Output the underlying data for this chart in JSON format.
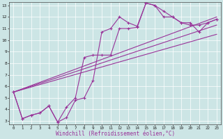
{
  "background_color": "#cce5e5",
  "grid_color": "#b0d8d8",
  "line_color": "#993399",
  "xlabel": "Windchill (Refroidissement éolien,°C)",
  "xlim": [
    0,
    23
  ],
  "ylim": [
    3,
    13
  ],
  "ytick_vals": [
    3,
    4,
    5,
    6,
    7,
    8,
    9,
    10,
    11,
    12,
    13
  ],
  "xtick_vals": [
    0,
    1,
    2,
    3,
    4,
    5,
    6,
    7,
    8,
    9,
    10,
    11,
    12,
    13,
    14,
    15,
    16,
    17,
    18,
    19,
    20,
    21,
    22,
    23
  ],
  "line1_x": [
    0,
    1,
    2,
    3,
    4,
    5,
    6,
    7,
    8,
    9,
    10,
    11,
    12,
    13,
    14,
    15,
    16,
    17,
    18,
    19,
    20,
    21,
    22,
    23
  ],
  "line1_y": [
    5.5,
    3.2,
    3.5,
    3.7,
    4.3,
    2.9,
    3.3,
    4.8,
    5.0,
    6.5,
    10.7,
    11.0,
    12.0,
    11.5,
    11.2,
    13.2,
    13.0,
    12.5,
    12.0,
    11.5,
    11.3,
    11.3,
    11.5,
    11.8
  ],
  "line2_x": [
    0,
    1,
    2,
    3,
    4,
    5,
    6,
    7,
    8,
    9,
    10,
    11,
    12,
    13,
    14,
    15,
    16,
    17,
    18,
    19,
    20,
    21,
    22,
    23
  ],
  "line2_y": [
    5.5,
    3.2,
    3.5,
    3.7,
    4.3,
    2.9,
    4.2,
    5.0,
    8.5,
    8.7,
    8.7,
    8.7,
    11.0,
    11.0,
    11.1,
    13.2,
    13.0,
    12.0,
    12.0,
    11.5,
    11.5,
    10.7,
    11.5,
    11.8
  ],
  "straight_lines": [
    {
      "x": [
        0,
        23
      ],
      "y": [
        5.5,
        12.0
      ]
    },
    {
      "x": [
        0,
        23
      ],
      "y": [
        5.5,
        11.3
      ]
    },
    {
      "x": [
        0,
        23
      ],
      "y": [
        5.5,
        10.5
      ]
    }
  ]
}
